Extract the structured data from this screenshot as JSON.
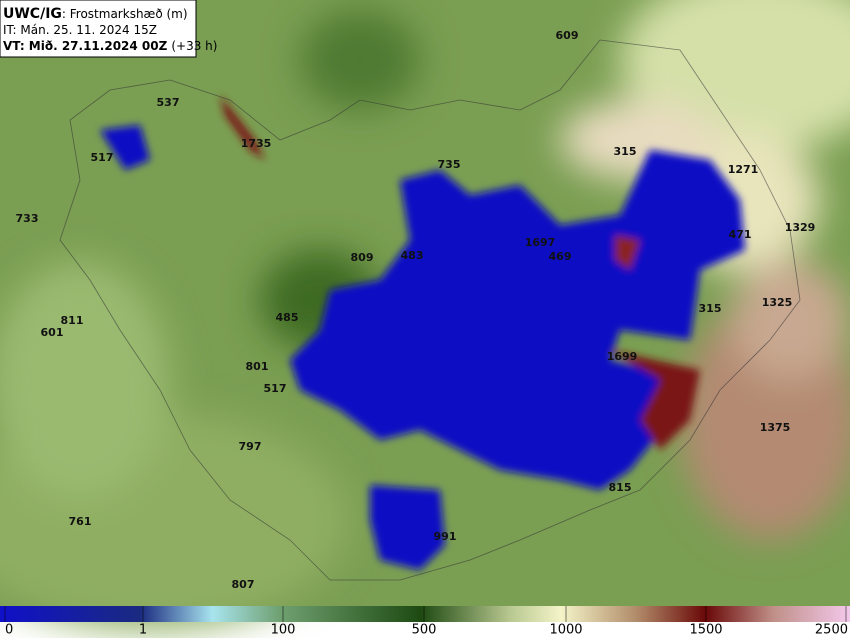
{
  "header": {
    "model": "UWC/IG",
    "field": ": Frostmarkshæð (m)",
    "issue_time": "IT: Mán. 25. 11. 2024 15Z",
    "valid_time": "VT: Mið. 27.11.2024 00Z",
    "lead": "(+33 h)"
  },
  "map_labels": [
    609,
    537,
    1735,
    517,
    735,
    315,
    1271,
    733,
    1697,
    469,
    809,
    483,
    471,
    1329,
    811,
    601,
    485,
    315,
    1325,
    1699,
    801,
    517,
    797,
    1375,
    815,
    761,
    991,
    807
  ],
  "colorbar": {
    "ticks": [
      0,
      1,
      100,
      500,
      1000,
      1500,
      2500
    ]
  }
}
